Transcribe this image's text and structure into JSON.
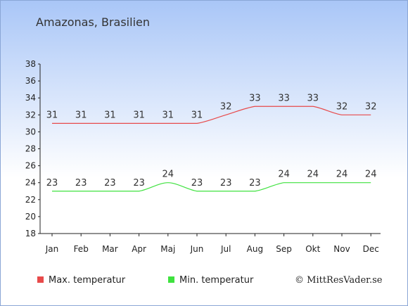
{
  "chart_data": {
    "type": "line",
    "title": "Amazonas, Brasilien",
    "categories": [
      "Jan",
      "Feb",
      "Mar",
      "Apr",
      "Maj",
      "Jun",
      "Jul",
      "Aug",
      "Sep",
      "Okt",
      "Nov",
      "Dec"
    ],
    "ylim": [
      18,
      38
    ],
    "yticks": [
      18,
      20,
      22,
      24,
      26,
      28,
      30,
      32,
      34,
      36,
      38
    ],
    "grid": false,
    "legend_position": "bottom",
    "series": [
      {
        "name": "Max. temperatur",
        "color": "#e84a4a",
        "values": [
          31,
          31,
          31,
          31,
          31,
          31,
          32,
          33,
          33,
          33,
          32,
          32
        ]
      },
      {
        "name": "Min. temperatur",
        "color": "#3fe23f",
        "values": [
          23,
          23,
          23,
          23,
          24,
          23,
          23,
          23,
          24,
          24,
          24,
          24
        ]
      }
    ],
    "watermark": "© MittResVader.se"
  }
}
